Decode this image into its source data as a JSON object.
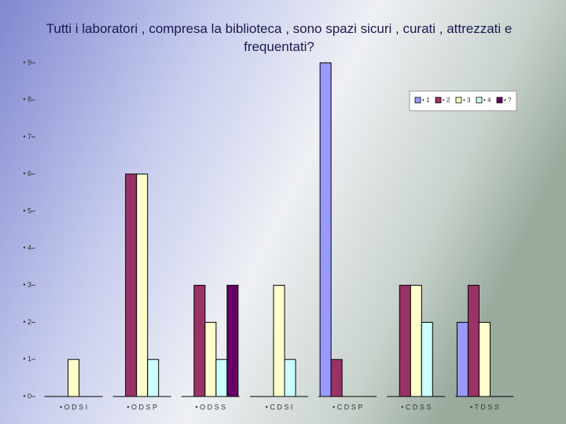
{
  "chart_data": {
    "type": "bar",
    "title": "Tutti i laboratori , compresa la biblioteca , sono spazi sicuri , curati , attrezzati e frequentati?",
    "categories": [
      "• O D S I",
      "• O D S P",
      "• O D S S",
      "• C D S I",
      "• C D S P",
      "• C D S S",
      "• T D S S"
    ],
    "series": [
      {
        "name": "• 1",
        "color": "#9999ff",
        "values": [
          0,
          0,
          0,
          0,
          9,
          0,
          2
        ]
      },
      {
        "name": "• 2",
        "color": "#993366",
        "values": [
          0,
          6,
          3,
          0,
          1,
          3,
          3
        ]
      },
      {
        "name": "• 3",
        "color": "#ffffcc",
        "values": [
          1,
          6,
          2,
          3,
          0,
          3,
          2
        ]
      },
      {
        "name": "• 4",
        "color": "#ccffff",
        "values": [
          0,
          1,
          1,
          1,
          0,
          2,
          0
        ]
      },
      {
        "name": "• ?",
        "color": "#660066",
        "values": [
          0,
          0,
          3,
          0,
          0,
          0,
          0
        ]
      }
    ],
    "ylim": [
      0,
      9
    ],
    "yticks": [
      {
        "value": 0,
        "label": "• 0"
      },
      {
        "value": 1,
        "label": "• 1"
      },
      {
        "value": 2,
        "label": "• 2"
      },
      {
        "value": 3,
        "label": "• 3"
      },
      {
        "value": 4,
        "label": "• 4"
      },
      {
        "value": 5,
        "label": "• 5"
      },
      {
        "value": 6,
        "label": "• 6"
      },
      {
        "value": 7,
        "label": "• 7"
      },
      {
        "value": 8,
        "label": "• 8"
      },
      {
        "value": 9,
        "label": "• 9"
      }
    ],
    "legend": "top-right",
    "grid": false
  }
}
